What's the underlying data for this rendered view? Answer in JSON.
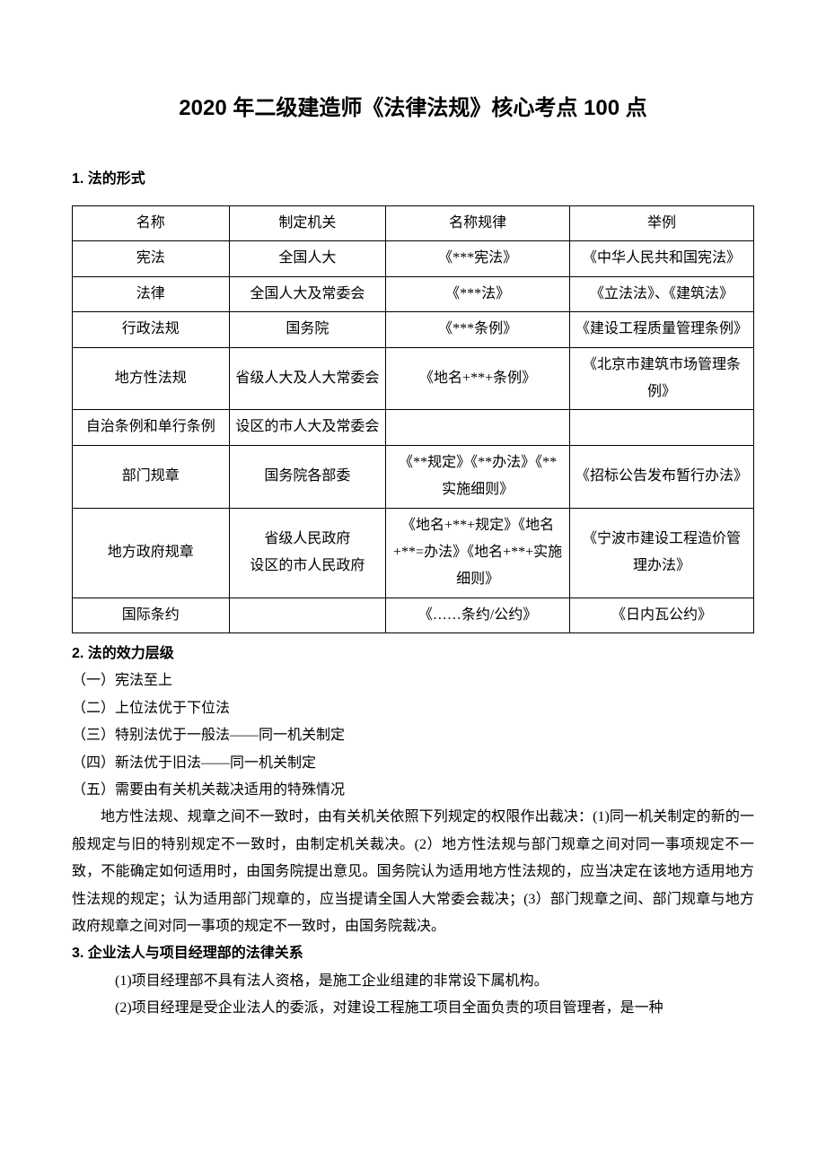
{
  "title": "2020 年二级建造师《法律法规》核心考点 100 点",
  "section1": {
    "heading": "1. 法的形式",
    "table": {
      "header": [
        "名称",
        "制定机关",
        "名称规律",
        "举例"
      ],
      "rows": [
        [
          "宪法",
          "全国人大",
          "《***宪法》",
          "《中华人民共和国宪法》"
        ],
        [
          "法律",
          "全国人大及常委会",
          "《***法》",
          "《立法法》、《建筑法》"
        ],
        [
          "行政法规",
          "国务院",
          "《***条例》",
          "《建设工程质量管理条例》"
        ],
        [
          "地方性法规",
          "省级人大及人大常委会",
          "《地名+**+条例》",
          "《北京市建筑市场管理条例》"
        ],
        [
          "自治条例和单行条例",
          "设区的市人大及常委会",
          "",
          ""
        ],
        [
          "部门规章",
          "国务院各部委",
          "《**规定》《**办法》《**实施细则》",
          "《招标公告发布暂行办法》"
        ],
        [
          "地方政府规章",
          "省级人民政府\n设区的市人民政府",
          "《地名+**+规定》《地名+**=办法》《地名+**+实施细则》",
          "《宁波市建设工程造价管理办法》"
        ],
        [
          "国际条约",
          "",
          "《……条约/公约》",
          "《日内瓦公约》"
        ]
      ]
    }
  },
  "section2": {
    "heading": "2. 法的效力层级",
    "items": [
      "（一）宪法至上",
      "（二）上位法优于下位法",
      "（三）特别法优于一般法——同一机关制定",
      "（四）新法优于旧法——同一机关制定",
      "（五）需要由有关机关裁决适用的特殊情况"
    ],
    "paragraph": "地方性法规、规章之间不一致时，由有关机关依照下列规定的权限作出裁决：(1)同一机关制定的新的一般规定与旧的特别规定不一致时，由制定机关裁决。(2）地方性法规与部门规章之间对同一事项规定不一致，不能确定如何适用时，由国务院提出意见。国务院认为适用地方性法规的，应当决定在该地方适用地方性法规的规定；认为适用部门规章的，应当提请全国人大常委会裁决；(3）部门规章之间、部门规章与地方政府规章之间对同一事项的规定不一致时，由国务院裁决。"
  },
  "section3": {
    "heading": "3. 企业法人与项目经理部的法律关系",
    "items": [
      "(1)项目经理部不具有法人资格，是施工企业组建的非常设下属机构。",
      "(2)项目经理是受企业法人的委派，对建设工程施工项目全面负责的项目管理者，是一种"
    ]
  }
}
